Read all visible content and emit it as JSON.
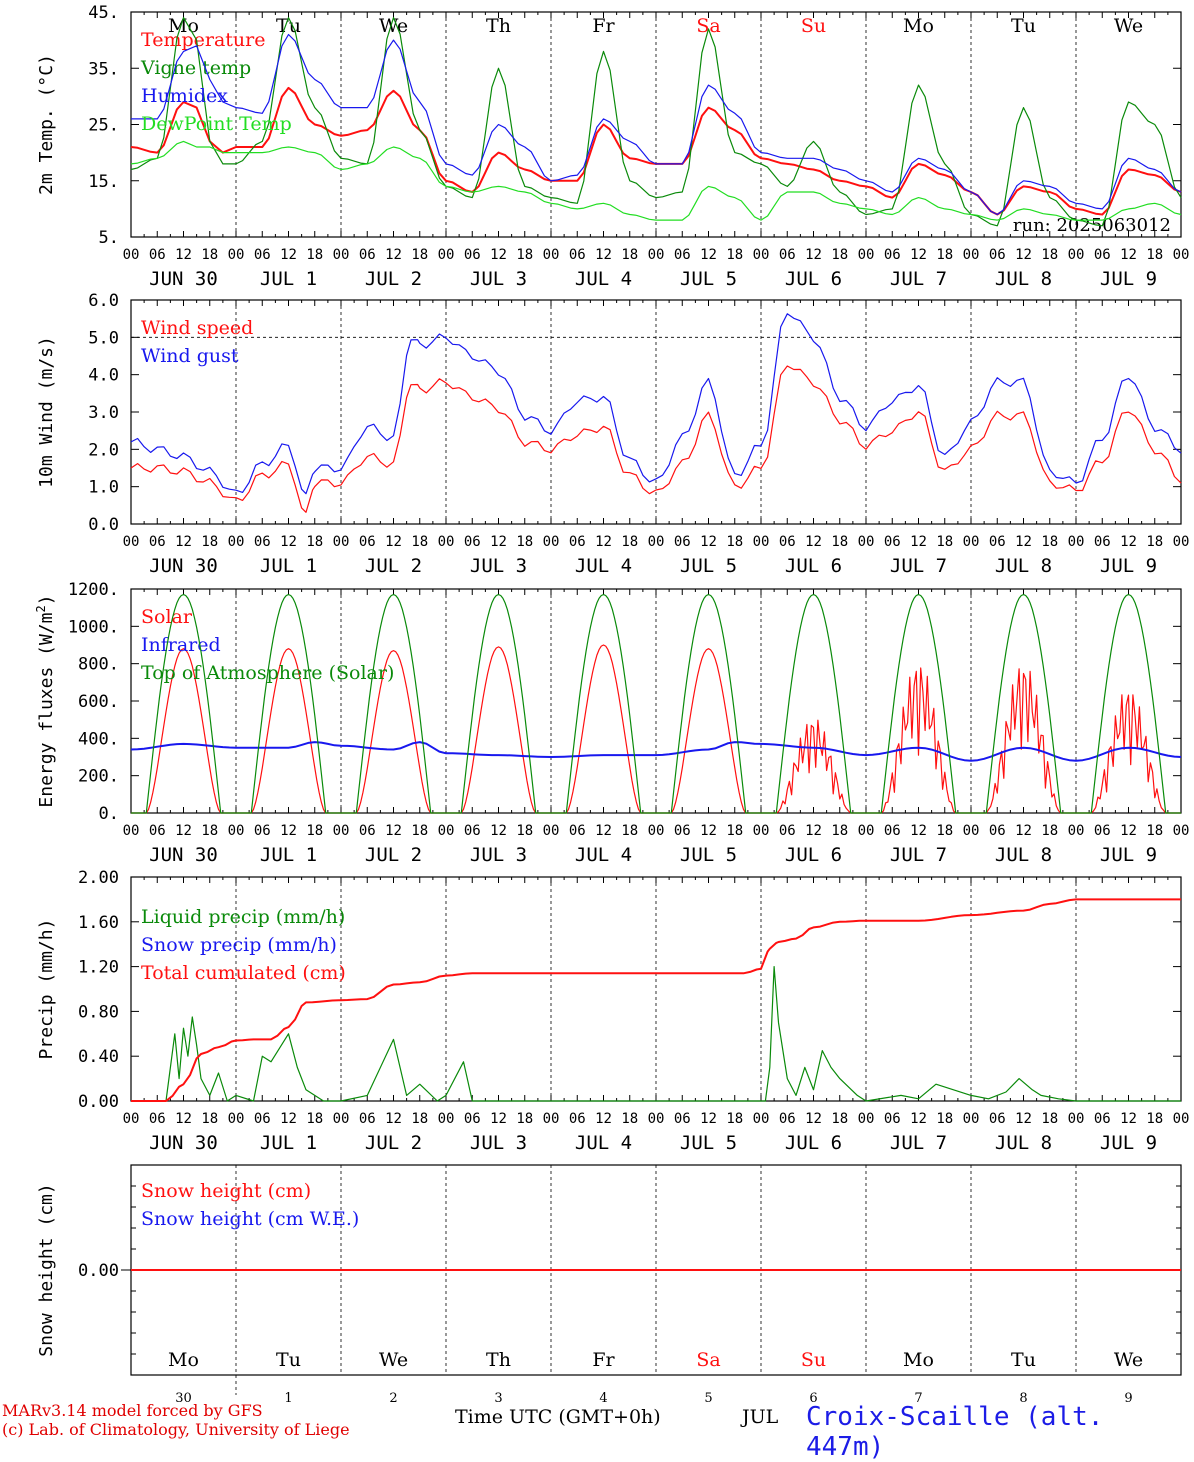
{
  "colors": {
    "red": "#ff1010",
    "green": "#0a8a0a",
    "blue": "#1818ee",
    "light_green": "#22dd22",
    "black": "#000000"
  },
  "footer": {
    "model_line": "MARv3.14 model forced by GFS",
    "lab_line": "(c) Lab. of Climatology, University of Liege",
    "xlabel": "Time UTC (GMT+0h)",
    "month": "JUL",
    "station": "Croix-Scaille (alt. 447m)"
  },
  "chart_data": [
    {
      "type": "line",
      "panel": "temperature",
      "ylabel": "2m Temp. (°C)",
      "ylim": [
        5,
        45
      ],
      "yticks": [
        "5.",
        "15.",
        "25.",
        "35.",
        "45."
      ],
      "ytick_values": [
        5,
        15,
        25,
        35,
        45
      ],
      "run_label": "run: 2025063012",
      "weekdays": [
        "Mo",
        "Tu",
        "We",
        "Th",
        "Fr",
        "Sa",
        "Su",
        "Mo",
        "Tu",
        "We"
      ],
      "weekday_colors": [
        "#000000",
        "#000000",
        "#000000",
        "#000000",
        "#000000",
        "#ff1010",
        "#ff1010",
        "#000000",
        "#000000",
        "#000000"
      ],
      "hour_ticks": [
        "00",
        "06",
        "12",
        "18"
      ],
      "date_labels": [
        "JUN 30",
        "JUL 1",
        "JUL 2",
        "JUL 3",
        "JUL 4",
        "JUL 5",
        "JUL 6",
        "JUL 7",
        "JUL 8",
        "JUL 9"
      ],
      "x_unit": "hours from 2025-06-30 00 UTC",
      "series": [
        {
          "name": "Temperature",
          "color": "#ff1010",
          "x": [
            0,
            6,
            12,
            15,
            18,
            21,
            24,
            30,
            36,
            42,
            48,
            54,
            60,
            66,
            72,
            78,
            84,
            90,
            96,
            102,
            108,
            114,
            120,
            126,
            132,
            138,
            144,
            150,
            156,
            162,
            168,
            174,
            180,
            186,
            192,
            198,
            204,
            210,
            216,
            222,
            228,
            234,
            240
          ],
          "y": [
            21,
            20,
            29,
            28,
            22,
            20,
            21,
            21,
            31.5,
            25,
            23,
            24,
            31,
            24,
            15,
            13,
            20,
            17,
            15,
            15,
            25,
            19,
            18,
            18,
            28,
            24,
            19,
            18,
            17,
            15,
            14,
            12,
            18,
            16,
            13,
            9,
            14,
            13,
            10,
            9,
            17,
            16,
            13
          ]
        },
        {
          "name": "Vigne temp",
          "color": "#0a8a0a",
          "x": [
            0,
            6,
            12,
            15,
            18,
            21,
            24,
            30,
            36,
            42,
            48,
            54,
            60,
            66,
            72,
            78,
            84,
            90,
            96,
            102,
            108,
            114,
            120,
            126,
            132,
            138,
            144,
            150,
            156,
            162,
            168,
            174,
            180,
            186,
            192,
            198,
            204,
            210,
            216,
            222,
            228,
            234,
            240
          ],
          "y": [
            17,
            19,
            44,
            40,
            22,
            18,
            18,
            22,
            44,
            28,
            19,
            18,
            44,
            24,
            14,
            12,
            35,
            14,
            12,
            11,
            38,
            15,
            12,
            13,
            42,
            20,
            18,
            14,
            22,
            13,
            9,
            10,
            32,
            18,
            9,
            7,
            28,
            12,
            8,
            7,
            29,
            25,
            12
          ]
        },
        {
          "name": "Humidex",
          "color": "#1818ee",
          "x": [
            0,
            6,
            12,
            15,
            18,
            21,
            24,
            30,
            36,
            42,
            48,
            54,
            60,
            66,
            72,
            78,
            84,
            90,
            96,
            102,
            108,
            114,
            120,
            126,
            132,
            138,
            144,
            150,
            156,
            162,
            168,
            174,
            180,
            186,
            192,
            198,
            204,
            210,
            216,
            222,
            228,
            234,
            240
          ],
          "y": [
            26,
            26,
            38,
            39,
            33,
            29,
            28,
            27,
            41,
            33,
            28,
            28,
            40,
            29,
            18,
            16,
            25,
            21,
            15,
            16,
            26,
            22,
            18,
            18,
            32,
            27,
            20,
            19,
            19,
            17,
            15,
            13,
            19,
            17,
            13,
            9,
            15,
            14,
            11,
            10,
            19,
            17,
            13
          ]
        },
        {
          "name": "DewPoint Temp",
          "color": "#22dd22",
          "x": [
            0,
            6,
            12,
            15,
            18,
            21,
            24,
            30,
            36,
            42,
            48,
            54,
            60,
            66,
            72,
            78,
            84,
            90,
            96,
            102,
            108,
            114,
            120,
            126,
            132,
            138,
            144,
            150,
            156,
            162,
            168,
            174,
            180,
            186,
            192,
            198,
            204,
            210,
            216,
            222,
            228,
            234,
            240
          ],
          "y": [
            18,
            19,
            22,
            21,
            21,
            20,
            20,
            20,
            21,
            20,
            17,
            18,
            21,
            19,
            14,
            13,
            14,
            13,
            11,
            10,
            11,
            9,
            8,
            8,
            14,
            12,
            8,
            13,
            13,
            11,
            10,
            9,
            12,
            10,
            9,
            8,
            10,
            9,
            8,
            8,
            10,
            11,
            9
          ]
        }
      ]
    },
    {
      "type": "line",
      "panel": "wind",
      "ylabel": "10m Wind (m/s)",
      "ylim": [
        0,
        6
      ],
      "yticks": [
        "0.0",
        "1.0",
        "2.0",
        "3.0",
        "4.0",
        "5.0",
        "6.0"
      ],
      "ytick_values": [
        0,
        1,
        2,
        3,
        4,
        5,
        6
      ],
      "ref_line": 5,
      "hour_ticks": [
        "00",
        "06",
        "12",
        "18"
      ],
      "date_labels": [
        "JUN 30",
        "JUL 1",
        "JUL 2",
        "JUL 3",
        "JUL 4",
        "JUL 5",
        "JUL 6",
        "JUL 7",
        "JUL 8",
        "JUL 9"
      ],
      "series": [
        {
          "name": "Wind speed",
          "color": "#ff1010",
          "x": [
            0,
            6,
            12,
            18,
            24,
            30,
            36,
            40,
            42,
            48,
            54,
            60,
            64,
            66,
            72,
            78,
            84,
            90,
            96,
            102,
            108,
            114,
            120,
            126,
            132,
            138,
            144,
            150,
            156,
            162,
            168,
            174,
            180,
            186,
            192,
            198,
            204,
            210,
            216,
            222,
            228,
            234,
            240
          ],
          "y": [
            1.5,
            1.5,
            1.4,
            1.1,
            0.6,
            1.3,
            1.6,
            0.2,
            1.1,
            1.1,
            1.8,
            1.6,
            3.8,
            3.6,
            3.8,
            3.4,
            3.1,
            2.2,
            2.0,
            2.4,
            2.6,
            1.3,
            0.8,
            1.6,
            2.9,
            1.0,
            1.5,
            4.3,
            3.8,
            2.8,
            2.1,
            2.5,
            3.0,
            1.4,
            2.0,
            2.9,
            2.9,
            1.1,
            0.9,
            1.7,
            3.1,
            2.0,
            1.2
          ]
        },
        {
          "name": "Wind gust",
          "color": "#1818ee",
          "x": [
            0,
            6,
            12,
            18,
            24,
            30,
            36,
            40,
            42,
            48,
            54,
            60,
            64,
            66,
            72,
            78,
            84,
            90,
            96,
            102,
            108,
            114,
            120,
            126,
            132,
            138,
            144,
            150,
            156,
            162,
            168,
            174,
            180,
            186,
            192,
            198,
            204,
            210,
            216,
            222,
            228,
            234,
            240
          ],
          "y": [
            2.2,
            2.0,
            1.8,
            1.4,
            0.8,
            1.6,
            2.1,
            0.7,
            1.5,
            1.5,
            2.6,
            2.3,
            5.0,
            4.8,
            5.0,
            4.5,
            4.1,
            2.9,
            2.5,
            3.3,
            3.4,
            1.7,
            1.1,
            2.3,
            3.8,
            1.3,
            2.1,
            5.7,
            5.0,
            3.4,
            2.6,
            3.3,
            3.7,
            1.8,
            2.7,
            3.8,
            3.8,
            1.4,
            1.1,
            2.3,
            4.0,
            2.6,
            2.0
          ]
        }
      ]
    },
    {
      "type": "line",
      "panel": "energy",
      "ylabel": "Energy fluxes (W/m²)",
      "ylim": [
        0,
        1200
      ],
      "yticks": [
        "0.",
        "200.",
        "400.",
        "600.",
        "800.",
        "1000.",
        "1200."
      ],
      "ytick_values": [
        0,
        200,
        400,
        600,
        800,
        1000,
        1200
      ],
      "hour_ticks": [
        "00",
        "06",
        "12",
        "18"
      ],
      "date_labels": [
        "JUN 30",
        "JUL 1",
        "JUL 2",
        "JUL 3",
        "JUL 4",
        "JUL 5",
        "JUL 6",
        "JUL 7",
        "JUL 8",
        "JUL 9"
      ],
      "series": [
        {
          "name": "Solar",
          "color": "#ff1010",
          "daily_peak": [
            880,
            880,
            870,
            890,
            900,
            880,
            520,
            820,
            820,
            680
          ]
        },
        {
          "name": "Infrared",
          "color": "#1818ee",
          "x": [
            0,
            12,
            24,
            36,
            42,
            48,
            60,
            66,
            72,
            84,
            96,
            108,
            120,
            132,
            138,
            144,
            156,
            168,
            180,
            192,
            204,
            216,
            228,
            240
          ],
          "y": [
            340,
            370,
            350,
            350,
            380,
            360,
            340,
            380,
            320,
            310,
            300,
            310,
            310,
            340,
            380,
            370,
            350,
            310,
            350,
            280,
            350,
            280,
            350,
            300
          ]
        },
        {
          "name": "Top of Atmosphere (Solar)",
          "color": "#0a8a0a",
          "daily_peak": [
            1170,
            1170,
            1170,
            1170,
            1170,
            1170,
            1170,
            1170,
            1170,
            1170
          ]
        }
      ]
    },
    {
      "type": "line",
      "panel": "precip",
      "ylabel": "Precip (mm/h)",
      "ylim": [
        0,
        2
      ],
      "yticks": [
        "0.00",
        "0.40",
        "0.80",
        "1.20",
        "1.60",
        "2.00"
      ],
      "ytick_values": [
        0,
        0.4,
        0.8,
        1.2,
        1.6,
        2.0
      ],
      "hour_ticks": [
        "00",
        "06",
        "12",
        "18"
      ],
      "date_labels": [
        "JUN 30",
        "JUL 1",
        "JUL 2",
        "JUL 3",
        "JUL 4",
        "JUL 5",
        "JUL 6",
        "JUL 7",
        "JUL 8",
        "JUL 9"
      ],
      "series": [
        {
          "name": "Liquid precip (mm/h)",
          "color": "#0a8a0a",
          "x": [
            0,
            8,
            10,
            11,
            12,
            13,
            14,
            15,
            16,
            18,
            20,
            22,
            24,
            28,
            30,
            32,
            36,
            38,
            40,
            44,
            48,
            54,
            60,
            63,
            66,
            70,
            72,
            76,
            78,
            80,
            96,
            144,
            145,
            146,
            147,
            148,
            150,
            152,
            154,
            156,
            158,
            160,
            162,
            166,
            168,
            176,
            180,
            184,
            192,
            196,
            200,
            203,
            206,
            208,
            212,
            216,
            240
          ],
          "y": [
            0,
            0,
            0.6,
            0.2,
            0.65,
            0.4,
            0.75,
            0.5,
            0.2,
            0.05,
            0.25,
            0,
            0.05,
            0,
            0.4,
            0.35,
            0.6,
            0.3,
            0.1,
            0,
            0,
            0.05,
            0.55,
            0.05,
            0.15,
            0,
            0.05,
            0.35,
            0,
            0,
            0,
            0,
            0,
            0.3,
            1.2,
            0.7,
            0.2,
            0.05,
            0.3,
            0.1,
            0.45,
            0.3,
            0.2,
            0.05,
            0,
            0.05,
            0.02,
            0.15,
            0.05,
            0.02,
            0.08,
            0.2,
            0.1,
            0.05,
            0.02,
            0,
            0
          ]
        },
        {
          "name": "Snow precip (mm/h)",
          "color": "#1818ee",
          "x": [
            0,
            240
          ],
          "y": [
            0,
            0
          ]
        },
        {
          "name": "Total cumulated (cm)",
          "color": "#ff1010",
          "x": [
            0,
            8,
            12,
            16,
            20,
            24,
            28,
            32,
            36,
            40,
            48,
            54,
            60,
            66,
            72,
            78,
            84,
            90,
            96,
            108,
            120,
            132,
            140,
            144,
            146,
            148,
            152,
            156,
            162,
            168,
            180,
            192,
            204,
            210,
            216,
            228,
            240
          ],
          "y": [
            0,
            0,
            0.15,
            0.42,
            0.48,
            0.54,
            0.55,
            0.55,
            0.66,
            0.88,
            0.9,
            0.91,
            1.04,
            1.06,
            1.12,
            1.14,
            1.14,
            1.14,
            1.14,
            1.14,
            1.14,
            1.14,
            1.14,
            1.18,
            1.36,
            1.42,
            1.45,
            1.55,
            1.6,
            1.61,
            1.61,
            1.66,
            1.7,
            1.76,
            1.8,
            1.8,
            1.8
          ]
        }
      ]
    },
    {
      "type": "line",
      "panel": "snow",
      "ylabel": "Snow height (cm)",
      "ylim": [
        -1,
        1
      ],
      "yticks": [
        "0.00"
      ],
      "ytick_values": [
        0
      ],
      "weekdays": [
        "Mo",
        "Tu",
        "We",
        "Th",
        "Fr",
        "Sa",
        "Su",
        "Mo",
        "Tu",
        "We"
      ],
      "weekday_colors": [
        "#000000",
        "#000000",
        "#000000",
        "#000000",
        "#000000",
        "#ff1010",
        "#ff1010",
        "#000000",
        "#000000",
        "#000000"
      ],
      "day_numbers": [
        "30",
        "1",
        "2",
        "3",
        "4",
        "5",
        "6",
        "7",
        "8",
        "9"
      ],
      "series": [
        {
          "name": "Snow height (cm)",
          "color": "#ff1010",
          "x": [
            0,
            240
          ],
          "y": [
            0,
            0
          ]
        },
        {
          "name": "Snow height (cm W.E.)",
          "color": "#1818ee",
          "x": [
            0,
            240
          ],
          "y": [
            0,
            0
          ]
        }
      ]
    }
  ]
}
